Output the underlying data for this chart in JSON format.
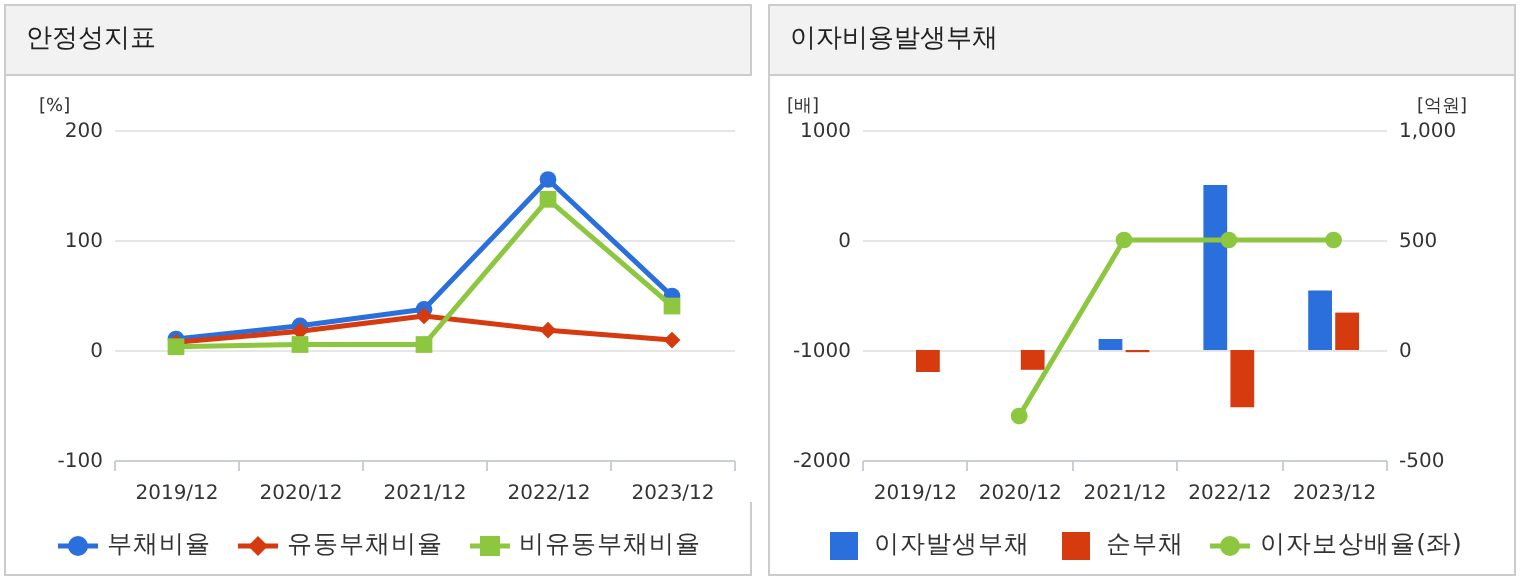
{
  "chart_data": [
    {
      "type": "line",
      "title": "안정성지표",
      "categories": [
        "2019/12",
        "2020/12",
        "2021/12",
        "2022/12",
        "2023/12"
      ],
      "series": [
        {
          "name": "부채비율",
          "color": "#2a6fdb",
          "marker": "circle",
          "values": [
            10,
            22,
            37,
            155,
            49
          ]
        },
        {
          "name": "유동부채비율",
          "color": "#d63b0f",
          "marker": "diamond",
          "values": [
            7,
            17,
            31,
            18,
            9
          ]
        },
        {
          "name": "비유동부채비율",
          "color": "#8dc63f",
          "marker": "square",
          "values": [
            3,
            5,
            5,
            137,
            40
          ]
        }
      ],
      "ylabel": "[%]",
      "ylim": [
        -100,
        200
      ],
      "yticks": [
        -100,
        0,
        100,
        200
      ],
      "grid": "y",
      "legend": "bottom"
    },
    {
      "type": "bar",
      "title": "이자비용발생부채",
      "categories": [
        "2019/12",
        "2020/12",
        "2021/12",
        "2022/12",
        "2023/12"
      ],
      "series": [
        {
          "name": "이자발생부채",
          "color": "#2a6fdb",
          "axis": "y2",
          "values": [
            null,
            null,
            50,
            750,
            270
          ]
        },
        {
          "name": "순부채",
          "color": "#d63b0f",
          "axis": "y2",
          "values": [
            -100,
            -90,
            -10,
            -260,
            170
          ]
        },
        {
          "name": "이자보상배율(좌)",
          "color": "#8dc63f",
          "type": "line",
          "marker": "circle",
          "axis": "y",
          "values": [
            null,
            -1600,
            0,
            0,
            0
          ]
        }
      ],
      "ylabel": "[배]",
      "ylim": [
        -2000,
        1000
      ],
      "yticks": [
        -2000,
        -1000,
        0,
        1000
      ],
      "y2label": "[억원]",
      "y2lim": [
        -500,
        1000
      ],
      "y2ticks": [
        -500,
        0,
        500,
        {
          "value": 1000,
          "label": "1,000"
        }
      ],
      "grid": "y",
      "legend": "bottom"
    }
  ]
}
